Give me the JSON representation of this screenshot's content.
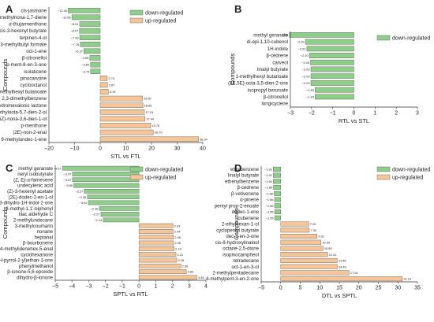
{
  "colors": {
    "down": "#8fce8a",
    "up": "#f5c497",
    "stroke": "#555555"
  },
  "chart_data": [
    {
      "panel": "A",
      "type": "bar",
      "orientation": "horizontal",
      "xlabel": "STL vs FTL",
      "ylabel": "Compounds",
      "xlim": [
        -20,
        40
      ],
      "xticks": [
        -20,
        -10,
        0,
        10,
        20,
        30,
        40
      ],
      "legend": [
        "down-regulated",
        "up-regulated"
      ],
      "legend_position": "top-right",
      "categories": [
        "cis-jasmone",
        "4,8-dimethylnona-1,7-diene",
        "α-thujarmenthone",
        "cis-3-hexenyl butyrate",
        "terpinen-4-ol",
        "3-methylbutyl formate",
        "oct-1-ene",
        "β-citronellol",
        "p-ment-8-en-3-one",
        "isolaticene",
        "pinocarvone",
        "cyclooctanol",
        "1-methylhexyl butanoate",
        "2,3-dimethylbenzene",
        "dehydromevalonic lactone",
        "(5E)-2,6-dimethyloota-5,7-dien-2-ol",
        "(3Z,6Z)-nona-3,6-dien-1-ol",
        "p-menthone",
        "(2E)-non-2-enal",
        "9-methylundec-1-ene"
      ],
      "values": [
        -12.49,
        -11.06,
        -8.01,
        -8.07,
        -7.99,
        -7.76,
        -6.37,
        -4.05,
        -3.8,
        -3.74,
        2.74,
        2.87,
        3.19,
        16.57,
        16.65,
        17.24,
        17.44,
        19.7,
        20.7,
        38.34
      ],
      "value_labels": [
        "−12.49",
        "−11.06",
        "−8.01",
        "−8.07",
        "−7.99",
        "−7.76",
        "−6.37",
        "−4.05",
        "−3.80",
        "−3.74",
        "2.74",
        "2.87",
        "3.19",
        "16.57",
        "16.65",
        "17.24",
        "17.44",
        "19.70",
        "20.70",
        "38.34"
      ]
    },
    {
      "panel": "B",
      "type": "bar",
      "orientation": "horizontal",
      "xlabel": "RTL vs STL",
      "ylabel": "Compounds",
      "xlim": [
        -3,
        3
      ],
      "xticks": [
        -3,
        -2,
        -1,
        0,
        1,
        2,
        3
      ],
      "legend": [
        "down-regulated"
      ],
      "legend_position": "top-right",
      "categories": [
        "methyl geranate",
        "di-epi-1,10-cubenol",
        "1H-indole",
        "β-cedrene",
        "carveol",
        "linalyl butyrate",
        "1-methylhexyl butanoate",
        "(3E,5E)-octa-3,5-dien-2-one",
        "isopropyl benzoate",
        "β-citronellol",
        "longicyclene"
      ],
      "values": [
        -3.05,
        -2.29,
        -2.22,
        -2.1,
        -2.05,
        -2.03,
        -2.03,
        -2.03,
        -1.83,
        -1.83,
        0
      ],
      "value_labels": [
        "−3.05",
        "−2.29",
        "−2.22",
        "−2.10",
        "−2.05",
        "−2.03",
        "−2.03",
        "−2.03",
        "−1.83",
        "−1.83",
        ""
      ]
    },
    {
      "panel": "C",
      "type": "bar",
      "orientation": "horizontal",
      "xlabel": "SPTL vs RTL",
      "ylabel": "Compounds",
      "xlim": [
        -5,
        4
      ],
      "xticks": [
        -5,
        -4,
        -3,
        -2,
        -1,
        0,
        1,
        2,
        3,
        4
      ],
      "legend": [
        "down-regulated",
        "up-regulated"
      ],
      "legend_position": "top-right",
      "categories": [
        "methyl geranate",
        "neryl isobutyrate",
        "(Z, E)-α-farnesene",
        "undecylenic acid",
        "(Z)-3-hexenyl acetate",
        "(2E)-dodec-2-en-1-ol",
        "2,3-dihydro-1H-indol-2-one",
        "3-methyl-1,1'-biphenyl",
        "lilac aldehyde C",
        "2-methylundecane",
        "3-methylcoumarin",
        "nonane",
        "heptanal",
        "β-bourbonene",
        "4-methylidenehex-5-enal",
        "cyclohexanone",
        "1-(1H-pyrrol-2-yl)ethan-1-one",
        "phenylmethanol",
        "β-ionone-5,6-epoxide",
        "dihydro-β-ionone"
      ],
      "values": [
        -4.57,
        -3.97,
        -3.97,
        -3.89,
        -3.27,
        -3.08,
        -3.02,
        -2.36,
        -2.27,
        -2.14,
        2.03,
        2.04,
        2.06,
        2.06,
        2.1,
        2.21,
        2.26,
        2.5,
        2.83,
        3.46
      ],
      "value_labels": [
        "−4.57",
        "−3.97",
        "−3.97",
        "−3.89",
        "−3.27",
        "−3.08",
        "−3.02",
        "−2.36",
        "−2.27",
        "−2.14",
        "2.03",
        "2.04",
        "2.06",
        "2.06",
        "2.10",
        "2.21",
        "2.26",
        "2.50",
        "2.83",
        "3.46"
      ]
    },
    {
      "panel": "D",
      "type": "bar",
      "orientation": "horizontal",
      "xlabel": "DTL vs SPTL",
      "ylabel": "Compounds",
      "xlim": [
        -5,
        35
      ],
      "xticks": [
        -5,
        0,
        5,
        10,
        15,
        20,
        25,
        30,
        35
      ],
      "legend": [
        "down-regulated",
        "up-regulated"
      ],
      "legend_position": "top-right",
      "categories": [
        "ethylbenzene",
        "linalyl butyrate",
        "ethenylbenzene",
        "β-cedrene",
        "β-vetivenene",
        "α-pinene",
        "pentyl prop-2-enoate",
        "dodec-1-ene",
        "cubenene",
        "2-ethylhexan-1-ol",
        "cyclopentyl butyrate",
        "dec-1-en-3-one",
        "cis-8-hydroxylinalool",
        "octane-2,5-dione",
        "isopinocampheol",
        "tetradecane",
        "oct-1-en-3-ol",
        "2-methylpentadecane",
        "4-methylpent-3-en-2-one"
      ],
      "values": [
        -1.91,
        -1.91,
        -1.9,
        -1.86,
        -1.68,
        -1.56,
        -1.56,
        -1.55,
        -1.55,
        7.2,
        7.32,
        9.31,
        10.3,
        10.83,
        12.01,
        14.46,
        14.49,
        17.51,
        31.13
      ],
      "value_labels": [
        "−1.91",
        "−1.91",
        "−1.90",
        "−1.86",
        "−1.68",
        "−1.56",
        "−1.56",
        "−1.55",
        "−1.55",
        "7.20",
        "7.32",
        "9.31",
        "10.30",
        "10.83",
        "12.01",
        "14.46",
        "14.49",
        "17.51",
        "31.13"
      ]
    }
  ]
}
